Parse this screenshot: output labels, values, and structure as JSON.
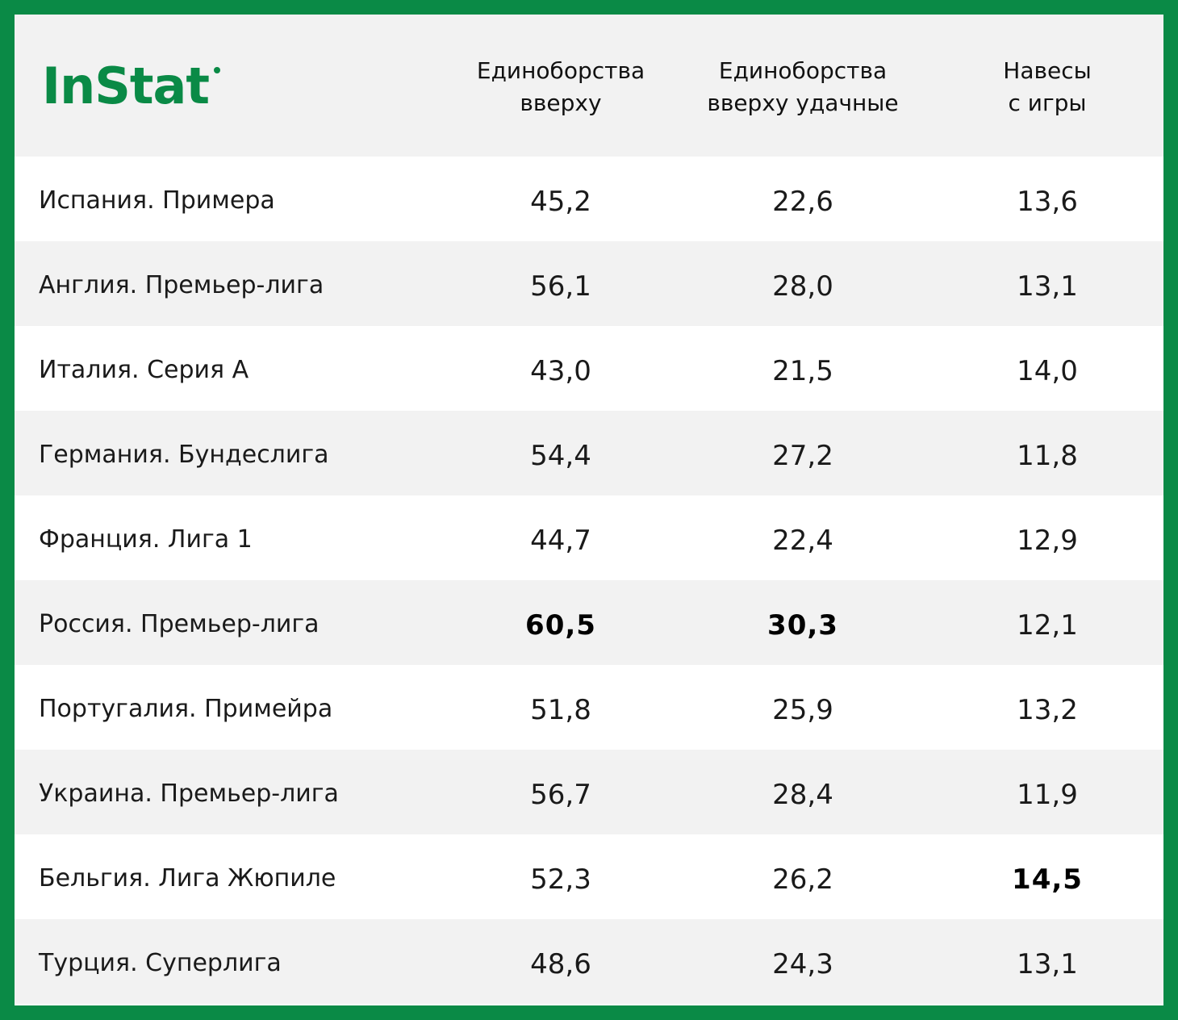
{
  "brand": {
    "logo_text": "InStat",
    "accent_color": "#0a8a46"
  },
  "chart_data": {
    "type": "table",
    "columns": [
      {
        "line1": "Единоборства",
        "line2": "вверху"
      },
      {
        "line1": "Единоборства",
        "line2": "вверху удачные"
      },
      {
        "line1": "Навесы",
        "line2": "с игры"
      }
    ],
    "rows": [
      {
        "name": "Испания. Примера",
        "values": [
          "45,2",
          "22,6",
          "13,6"
        ],
        "bold": [
          false,
          false,
          false
        ]
      },
      {
        "name": "Англия. Премьер-лига",
        "values": [
          "56,1",
          "28,0",
          "13,1"
        ],
        "bold": [
          false,
          false,
          false
        ]
      },
      {
        "name": "Италия. Серия А",
        "values": [
          "43,0",
          "21,5",
          "14,0"
        ],
        "bold": [
          false,
          false,
          false
        ]
      },
      {
        "name": "Германия. Бундеслига",
        "values": [
          "54,4",
          "27,2",
          "11,8"
        ],
        "bold": [
          false,
          false,
          false
        ]
      },
      {
        "name": "Франция. Лига 1",
        "values": [
          "44,7",
          "22,4",
          "12,9"
        ],
        "bold": [
          false,
          false,
          false
        ]
      },
      {
        "name": "Россия. Премьер-лига",
        "values": [
          "60,5",
          "30,3",
          "12,1"
        ],
        "bold": [
          true,
          true,
          false
        ]
      },
      {
        "name": "Португалия. Примейра",
        "values": [
          "51,8",
          "25,9",
          "13,2"
        ],
        "bold": [
          false,
          false,
          false
        ]
      },
      {
        "name": "Украина. Премьер-лига",
        "values": [
          "56,7",
          "28,4",
          "11,9"
        ],
        "bold": [
          false,
          false,
          false
        ]
      },
      {
        "name": "Бельгия. Лига Жюпиле",
        "values": [
          "52,3",
          "26,2",
          "14,5"
        ],
        "bold": [
          false,
          false,
          true
        ]
      },
      {
        "name": "Турция. Суперлига",
        "values": [
          "48,6",
          "24,3",
          "13,1"
        ],
        "bold": [
          false,
          false,
          false
        ]
      }
    ]
  }
}
